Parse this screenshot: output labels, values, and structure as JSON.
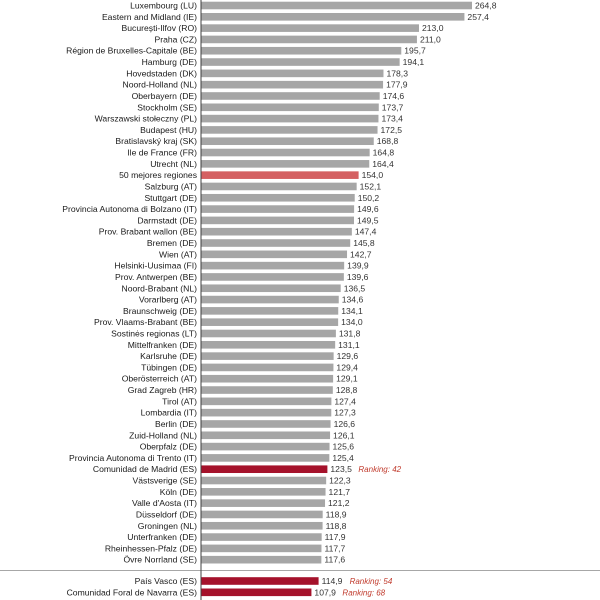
{
  "colors": {
    "bar": "#a6a6a6",
    "avg_bar": "#d46062",
    "spain_bar": "#a5122b",
    "ranking_text": "#c0392b",
    "axis": "#404040"
  },
  "chart_data": {
    "type": "bar",
    "orientation": "horizontal",
    "xlim": [
      0,
      270
    ],
    "categories": [
      "Luxembourg (LU)",
      "Eastern and Midland (IE)",
      "București-Ilfov (RO)",
      "Praha (CZ)",
      "Région de Bruxelles-Capitale (BE)",
      "Hamburg (DE)",
      "Hovedstaden (DK)",
      "Noord-Holland (NL)",
      "Oberbayern (DE)",
      "Stockholm (SE)",
      "Warszawski stołeczny (PL)",
      "Budapest (HU)",
      "Bratislavský kraj (SK)",
      "Ile de France (FR)",
      "Utrecht (NL)",
      "50 mejores regiones",
      "Salzburg (AT)",
      "Stuttgart (DE)",
      "Provincia Autonoma di Bolzano (IT)",
      "Darmstadt (DE)",
      "Prov. Brabant wallon (BE)",
      "Bremen (DE)",
      "Wien (AT)",
      "Helsinki-Uusimaa (FI)",
      "Prov. Antwerpen (BE)",
      "Noord-Brabant (NL)",
      "Vorarlberg (AT)",
      "Braunschweig (DE)",
      "Prov. Vlaams-Brabant (BE)",
      "Sostinės regionas (LT)",
      "Mittelfranken (DE)",
      "Karlsruhe (DE)",
      "Tübingen (DE)",
      "Oberösterreich (AT)",
      "Grad Zagreb (HR)",
      "Tirol (AT)",
      "Lombardia (IT)",
      "Berlin (DE)",
      "Zuid-Holland (NL)",
      "Oberpfalz (DE)",
      "Provincia Autonoma di Trento (IT)",
      "Comunidad de Madrid (ES)",
      "Västsverige (SE)",
      "Köln (DE)",
      "Valle d'Aosta (IT)",
      "Düsseldorf (DE)",
      "Groningen (NL)",
      "Unterfranken (DE)",
      "Rheinhessen-Pfalz (DE)",
      "Övre Norrland (SE)",
      "País Vasco (ES)",
      "Comunidad Foral de Navarra (ES)"
    ],
    "values": [
      264.8,
      257.4,
      213.0,
      211.0,
      195.7,
      194.1,
      178.3,
      177.9,
      174.6,
      173.7,
      173.4,
      172.5,
      168.8,
      164.8,
      164.4,
      154.0,
      152.1,
      150.2,
      149.6,
      149.5,
      147.4,
      145.8,
      142.7,
      139.9,
      139.6,
      136.5,
      134.6,
      134.1,
      134.0,
      131.8,
      131.1,
      129.6,
      129.4,
      129.1,
      128.8,
      127.4,
      127.3,
      126.6,
      126.1,
      125.6,
      125.4,
      123.5,
      122.3,
      121.7,
      121.2,
      118.9,
      118.8,
      117.9,
      117.7,
      117.6,
      114.9,
      107.9
    ],
    "value_labels": [
      "264,8",
      "257,4",
      "213,0",
      "211,0",
      "195,7",
      "194,1",
      "178,3",
      "177,9",
      "174,6",
      "173,7",
      "173,4",
      "172,5",
      "168,8",
      "164,8",
      "164,4",
      "154,0",
      "152,1",
      "150,2",
      "149,6",
      "149,5",
      "147,4",
      "145,8",
      "142,7",
      "139,9",
      "139,6",
      "136,5",
      "134,6",
      "134,1",
      "134,0",
      "131,8",
      "131,1",
      "129,6",
      "129,4",
      "129,1",
      "128,8",
      "127,4",
      "127,3",
      "126,6",
      "126,1",
      "125,6",
      "125,4",
      "123,5",
      "122,3",
      "121,7",
      "121,2",
      "118,9",
      "118,8",
      "117,9",
      "117,7",
      "117,6",
      "114,9",
      "107,9"
    ],
    "highlight_average": "50 mejores regiones",
    "highlight_spain": [
      "Comunidad de Madrid (ES)",
      "País Vasco (ES)",
      "Comunidad Foral de Navarra (ES)"
    ],
    "separator_before": "País Vasco (ES)",
    "annotations": [
      {
        "category": "Comunidad de Madrid (ES)",
        "text": "Ranking: 42"
      },
      {
        "category": "País Vasco (ES)",
        "text": "Ranking: 54"
      },
      {
        "category": "Comunidad Foral de Navarra (ES)",
        "text": "Ranking: 68"
      }
    ]
  }
}
